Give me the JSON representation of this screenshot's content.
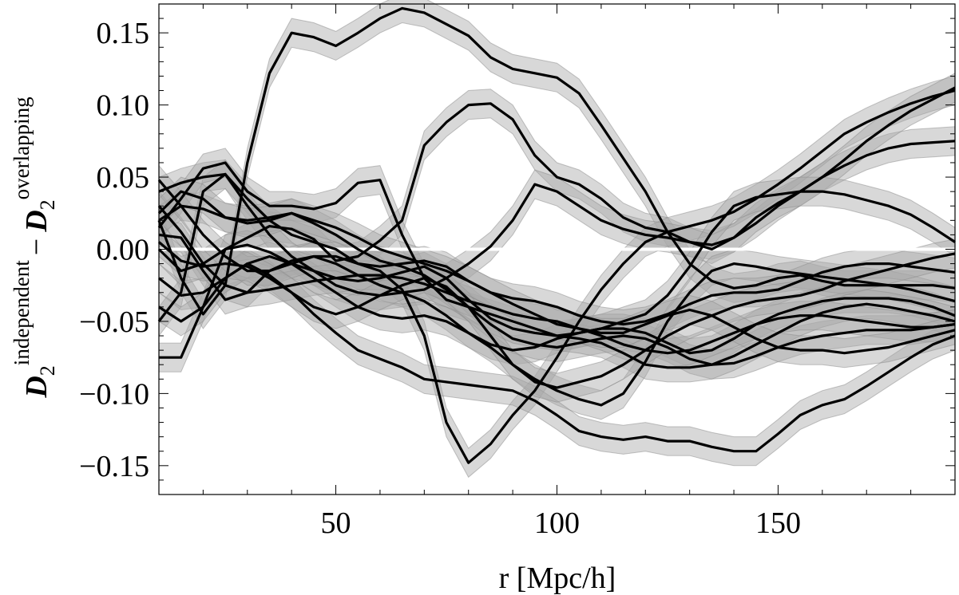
{
  "chart_data": {
    "type": "line",
    "title": "",
    "xlabel": "r [Mpc/h]",
    "ylabel": {
      "main": "D",
      "sub": "2",
      "sup_left": "independent",
      "minus": "−",
      "sup_right": "overlapping"
    },
    "xlim": [
      10,
      190
    ],
    "ylim": [
      -0.17,
      0.17
    ],
    "xticks": [
      {
        "value": 50,
        "label": "50"
      },
      {
        "value": 100,
        "label": "100"
      },
      {
        "value": 150,
        "label": "150"
      }
    ],
    "yticks": [
      {
        "value": -0.15,
        "label": "−0.15"
      },
      {
        "value": -0.1,
        "label": "−0.10"
      },
      {
        "value": -0.05,
        "label": "−0.05"
      },
      {
        "value": 0.0,
        "label": "0.00"
      },
      {
        "value": 0.05,
        "label": "0.05"
      },
      {
        "value": 0.1,
        "label": "0.10"
      },
      {
        "value": 0.15,
        "label": "0.15"
      }
    ],
    "grid": false,
    "zero_line": {
      "value": 0,
      "color": "#ffffff"
    },
    "line_color": "#000000",
    "band_color": "#a8a8a8",
    "band_halfwidth": 0.01,
    "series": [
      {
        "x": [
          10,
          15,
          20,
          25,
          30,
          35,
          40,
          45,
          50,
          55,
          60,
          65,
          70,
          75,
          80,
          85,
          90,
          95,
          100,
          105,
          110,
          115,
          120,
          125,
          130,
          135,
          140,
          145,
          150,
          155,
          160,
          165,
          170,
          175,
          180,
          185,
          190
        ],
        "y": [
          0.02,
          -0.02,
          -0.045,
          -0.025,
          0.06,
          0.122,
          0.15,
          0.147,
          0.141,
          0.15,
          0.16,
          0.167,
          0.164,
          0.156,
          0.148,
          0.133,
          0.125,
          0.122,
          0.119,
          0.108,
          0.086,
          0.063,
          0.04,
          0.012,
          -0.01,
          -0.022,
          -0.027,
          -0.025,
          -0.02,
          -0.018,
          -0.022,
          -0.025,
          -0.025,
          -0.025,
          -0.025,
          -0.025,
          -0.027
        ]
      },
      {
        "x": [
          10,
          15,
          20,
          25,
          30,
          35,
          40,
          45,
          50,
          55,
          60,
          65,
          70,
          75,
          80,
          85,
          90,
          95,
          100,
          105,
          110,
          115,
          120,
          125,
          130,
          135,
          140,
          145,
          150,
          155,
          160,
          165,
          170,
          175,
          180,
          185,
          190
        ],
        "y": [
          -0.075,
          -0.075,
          -0.04,
          0.0,
          0.008,
          0.016,
          0.014,
          0.007,
          -0.008,
          -0.005,
          0.006,
          0.02,
          0.072,
          0.088,
          0.1,
          0.101,
          0.09,
          0.065,
          0.05,
          0.045,
          0.035,
          0.022,
          0.015,
          0.012,
          0.005,
          0.003,
          0.008,
          0.018,
          0.03,
          0.04,
          0.05,
          0.058,
          0.065,
          0.07,
          0.073,
          0.074,
          0.075
        ]
      },
      {
        "x": [
          10,
          15,
          20,
          25,
          30,
          35,
          40,
          45,
          50,
          55,
          60,
          65,
          70,
          75,
          80,
          85,
          90,
          95,
          100,
          105,
          110,
          115,
          120,
          125,
          130,
          135,
          140,
          145,
          150,
          155,
          160,
          165,
          170,
          175,
          180,
          185,
          190
        ],
        "y": [
          0.04,
          0.046,
          0.05,
          0.052,
          0.035,
          0.02,
          0.01,
          0.005,
          0.0,
          -0.01,
          -0.015,
          -0.028,
          -0.06,
          -0.12,
          -0.148,
          -0.135,
          -0.115,
          -0.098,
          -0.075,
          -0.05,
          -0.028,
          -0.01,
          0.005,
          0.012,
          0.016,
          0.02,
          0.026,
          0.035,
          0.045,
          0.056,
          0.068,
          0.08,
          0.088,
          0.095,
          0.101,
          0.106,
          0.11
        ]
      },
      {
        "x": [
          10,
          15,
          20,
          25,
          30,
          35,
          40,
          45,
          50,
          55,
          60,
          65,
          70,
          75,
          80,
          85,
          90,
          95,
          100,
          105,
          110,
          115,
          120,
          125,
          130,
          135,
          140,
          145,
          150,
          155,
          160,
          165,
          170,
          175,
          180,
          185,
          190
        ],
        "y": [
          -0.05,
          -0.03,
          0.04,
          0.052,
          0.03,
          0.01,
          -0.005,
          -0.015,
          -0.025,
          -0.03,
          -0.032,
          -0.03,
          -0.028,
          -0.02,
          -0.01,
          0.002,
          0.02,
          0.045,
          0.04,
          0.03,
          0.02,
          0.014,
          0.01,
          0.008,
          0.005,
          0.0,
          0.008,
          0.022,
          0.032,
          0.04,
          0.05,
          0.062,
          0.075,
          0.086,
          0.096,
          0.104,
          0.112
        ]
      },
      {
        "x": [
          10,
          15,
          20,
          25,
          30,
          35,
          40,
          45,
          50,
          55,
          60,
          65,
          70,
          75,
          80,
          85,
          90,
          95,
          100,
          105,
          110,
          115,
          120,
          125,
          130,
          135,
          140,
          145,
          150,
          155,
          160,
          165,
          170,
          175,
          180,
          185,
          190
        ],
        "y": [
          0.015,
          0.035,
          0.056,
          0.06,
          0.04,
          0.03,
          0.03,
          0.028,
          0.032,
          0.046,
          0.048,
          0.01,
          -0.02,
          -0.035,
          -0.04,
          -0.045,
          -0.05,
          -0.055,
          -0.06,
          -0.058,
          -0.055,
          -0.05,
          -0.045,
          -0.032,
          -0.012,
          0.012,
          0.03,
          0.036,
          0.038,
          0.04,
          0.04,
          0.038,
          0.034,
          0.03,
          0.024,
          0.015,
          0.005
        ]
      },
      {
        "x": [
          10,
          15,
          20,
          25,
          30,
          35,
          40,
          45,
          50,
          55,
          60,
          65,
          70,
          75,
          80,
          85,
          90,
          95,
          100,
          105,
          110,
          115,
          120,
          125,
          130,
          135,
          140,
          145,
          150,
          155,
          160,
          165,
          170,
          175,
          180,
          185,
          190
        ],
        "y": [
          0.01,
          0.008,
          -0.015,
          -0.035,
          -0.03,
          -0.015,
          -0.008,
          -0.005,
          -0.01,
          -0.018,
          -0.025,
          -0.03,
          -0.036,
          -0.046,
          -0.058,
          -0.066,
          -0.07,
          -0.068,
          -0.062,
          -0.058,
          -0.055,
          -0.055,
          -0.058,
          -0.065,
          -0.072,
          -0.07,
          -0.062,
          -0.052,
          -0.045,
          -0.04,
          -0.036,
          -0.034,
          -0.034,
          -0.034,
          -0.036,
          -0.04,
          -0.046
        ]
      },
      {
        "x": [
          10,
          15,
          20,
          25,
          30,
          35,
          40,
          45,
          50,
          55,
          60,
          65,
          70,
          75,
          80,
          85,
          90,
          95,
          100,
          105,
          110,
          115,
          120,
          125,
          130,
          135,
          140,
          145,
          150,
          155,
          160,
          165,
          170,
          175,
          180,
          185,
          190
        ],
        "y": [
          -0.02,
          -0.032,
          -0.03,
          -0.02,
          -0.01,
          -0.005,
          -0.01,
          -0.02,
          -0.03,
          -0.04,
          -0.046,
          -0.048,
          -0.046,
          -0.05,
          -0.058,
          -0.068,
          -0.08,
          -0.09,
          -0.098,
          -0.104,
          -0.108,
          -0.1,
          -0.078,
          -0.05,
          -0.03,
          -0.015,
          -0.01,
          -0.012,
          -0.015,
          -0.017,
          -0.019,
          -0.021,
          -0.023,
          -0.025,
          -0.028,
          -0.032,
          -0.036
        ]
      },
      {
        "x": [
          10,
          15,
          20,
          25,
          30,
          35,
          40,
          45,
          50,
          55,
          60,
          65,
          70,
          75,
          80,
          85,
          90,
          95,
          100,
          105,
          110,
          115,
          120,
          125,
          130,
          135,
          140,
          145,
          150,
          155,
          160,
          165,
          170,
          175,
          180,
          185,
          190
        ],
        "y": [
          -0.04,
          -0.05,
          -0.04,
          -0.02,
          -0.01,
          -0.018,
          -0.03,
          -0.045,
          -0.058,
          -0.07,
          -0.076,
          -0.082,
          -0.09,
          -0.092,
          -0.094,
          -0.096,
          -0.098,
          -0.105,
          -0.115,
          -0.126,
          -0.13,
          -0.132,
          -0.13,
          -0.133,
          -0.133,
          -0.137,
          -0.14,
          -0.14,
          -0.128,
          -0.115,
          -0.108,
          -0.104,
          -0.095,
          -0.085,
          -0.075,
          -0.066,
          -0.06
        ]
      },
      {
        "x": [
          10,
          15,
          20,
          25,
          30,
          35,
          40,
          45,
          50,
          55,
          60,
          65,
          70,
          75,
          80,
          85,
          90,
          95,
          100,
          105,
          110,
          115,
          120,
          125,
          130,
          135,
          140,
          145,
          150,
          155,
          160,
          165,
          170,
          175,
          180,
          185,
          190
        ],
        "y": [
          0.02,
          0.03,
          0.028,
          0.022,
          0.02,
          0.022,
          0.025,
          0.018,
          0.01,
          0.0,
          -0.008,
          -0.012,
          -0.018,
          -0.028,
          -0.04,
          -0.052,
          -0.062,
          -0.066,
          -0.068,
          -0.065,
          -0.062,
          -0.06,
          -0.062,
          -0.068,
          -0.076,
          -0.08,
          -0.079,
          -0.074,
          -0.068,
          -0.063,
          -0.06,
          -0.058,
          -0.056,
          -0.056,
          -0.056,
          -0.054,
          -0.052
        ]
      },
      {
        "x": [
          10,
          15,
          20,
          25,
          30,
          35,
          40,
          45,
          50,
          55,
          60,
          65,
          70,
          75,
          80,
          85,
          90,
          95,
          100,
          105,
          110,
          115,
          120,
          125,
          130,
          135,
          140,
          145,
          150,
          155,
          160,
          165,
          170,
          175,
          180,
          185,
          190
        ],
        "y": [
          0.0,
          -0.015,
          -0.01,
          0.0,
          0.003,
          -0.002,
          -0.01,
          -0.015,
          -0.02,
          -0.022,
          -0.02,
          -0.016,
          -0.012,
          -0.02,
          -0.035,
          -0.048,
          -0.055,
          -0.058,
          -0.06,
          -0.062,
          -0.065,
          -0.072,
          -0.08,
          -0.082,
          -0.082,
          -0.08,
          -0.074,
          -0.066,
          -0.058,
          -0.05,
          -0.044,
          -0.04,
          -0.038,
          -0.04,
          -0.043,
          -0.046,
          -0.05
        ]
      },
      {
        "x": [
          10,
          15,
          20,
          25,
          30,
          35,
          40,
          45,
          50,
          55,
          60,
          65,
          70,
          75,
          80,
          85,
          90,
          95,
          100,
          105,
          110,
          115,
          120,
          125,
          130,
          135,
          140,
          145,
          150,
          155,
          160,
          165,
          170,
          175,
          180,
          185,
          190
        ],
        "y": [
          0.03,
          0.012,
          -0.01,
          -0.025,
          -0.03,
          -0.028,
          -0.025,
          -0.022,
          -0.02,
          -0.018,
          -0.018,
          -0.02,
          -0.024,
          -0.03,
          -0.036,
          -0.04,
          -0.045,
          -0.048,
          -0.05,
          -0.055,
          -0.06,
          -0.066,
          -0.07,
          -0.072,
          -0.07,
          -0.064,
          -0.058,
          -0.052,
          -0.048,
          -0.046,
          -0.046,
          -0.048,
          -0.05,
          -0.052,
          -0.054,
          -0.054,
          -0.052
        ]
      },
      {
        "x": [
          10,
          15,
          20,
          25,
          30,
          35,
          40,
          45,
          50,
          55,
          60,
          65,
          70,
          75,
          80,
          85,
          90,
          95,
          100,
          105,
          110,
          115,
          120,
          125,
          130,
          135,
          140,
          145,
          150,
          155,
          160,
          165,
          170,
          175,
          180,
          185,
          190
        ],
        "y": [
          0.048,
          0.03,
          0.01,
          -0.005,
          -0.015,
          -0.015,
          -0.01,
          -0.005,
          -0.005,
          -0.01,
          -0.012,
          -0.01,
          -0.008,
          -0.012,
          -0.022,
          -0.03,
          -0.034,
          -0.036,
          -0.04,
          -0.046,
          -0.05,
          -0.052,
          -0.05,
          -0.045,
          -0.038,
          -0.032,
          -0.03,
          -0.03,
          -0.028,
          -0.022,
          -0.016,
          -0.012,
          -0.01,
          -0.01,
          -0.012,
          -0.014,
          -0.016
        ]
      },
      {
        "x": [
          10,
          15,
          20,
          25,
          30,
          35,
          40,
          45,
          50,
          55,
          60,
          65,
          70,
          75,
          80,
          85,
          90,
          95,
          100,
          105,
          110,
          115,
          120,
          125,
          130,
          135,
          140,
          145,
          150,
          155,
          160,
          165,
          170,
          175,
          180,
          185,
          190
        ],
        "y": [
          0.005,
          -0.008,
          -0.012,
          -0.01,
          -0.012,
          -0.02,
          -0.03,
          -0.04,
          -0.045,
          -0.04,
          -0.032,
          -0.025,
          -0.02,
          -0.026,
          -0.04,
          -0.06,
          -0.08,
          -0.092,
          -0.096,
          -0.092,
          -0.088,
          -0.08,
          -0.07,
          -0.06,
          -0.052,
          -0.046,
          -0.04,
          -0.036,
          -0.034,
          -0.032,
          -0.028,
          -0.022,
          -0.018,
          -0.014,
          -0.01,
          -0.006,
          -0.003
        ]
      },
      {
        "x": [
          10,
          15,
          20,
          25,
          30,
          35,
          40,
          45,
          50,
          55,
          60,
          65,
          70,
          75,
          80,
          85,
          90,
          95,
          100,
          105,
          110,
          115,
          120,
          125,
          130,
          135,
          140,
          145,
          150,
          155,
          160,
          165,
          170,
          175,
          180,
          185,
          190
        ],
        "y": [
          0.025,
          0.04,
          0.035,
          0.022,
          0.018,
          0.02,
          0.025,
          0.02,
          0.015,
          0.008,
          0.0,
          -0.005,
          -0.01,
          -0.015,
          -0.022,
          -0.03,
          -0.038,
          -0.045,
          -0.052,
          -0.055,
          -0.058,
          -0.058,
          -0.052,
          -0.046,
          -0.042,
          -0.046,
          -0.054,
          -0.062,
          -0.068,
          -0.07,
          -0.07,
          -0.072,
          -0.07,
          -0.068,
          -0.064,
          -0.06,
          -0.056
        ]
      }
    ]
  }
}
